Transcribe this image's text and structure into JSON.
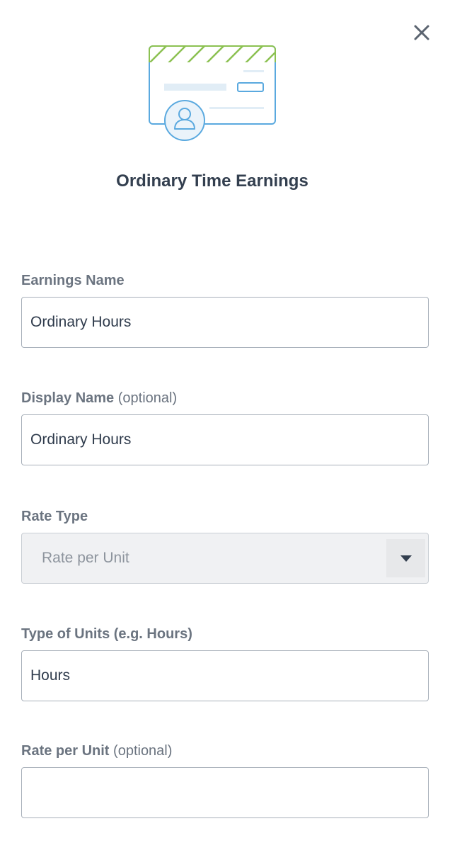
{
  "dialog": {
    "title": "Ordinary Time Earnings",
    "close_icon": "close-icon",
    "illustration": "payslip-card-with-person-icon"
  },
  "colors": {
    "accent_blue": "#4aa3df",
    "accent_green": "#8cc152",
    "label": "#6b7480",
    "text": "#2f3b4c"
  },
  "fields": [
    {
      "label": "Earnings Name",
      "optional": "",
      "value": "Ordinary Hours"
    },
    {
      "label": "Display Name",
      "optional": "(optional)",
      "value": "Ordinary Hours"
    },
    {
      "label": "Rate Type",
      "optional": "",
      "value": "Rate per Unit"
    },
    {
      "label": "Type of Units (e.g. Hours)",
      "optional": "",
      "value": "Hours"
    },
    {
      "label": "Rate per Unit",
      "optional": "(optional)",
      "value": ""
    }
  ]
}
